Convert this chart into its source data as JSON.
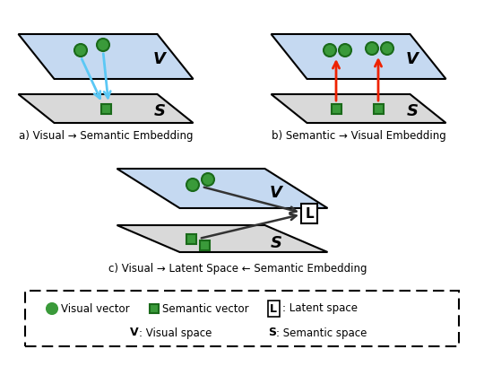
{
  "bg_color": "#ffffff",
  "parallelogram_blue_color": "#c5d9f1",
  "parallelogram_gray_color": "#d9d9d9",
  "parallelogram_edge_color": "#000000",
  "circle_color": "#3a9a3a",
  "circle_edge_color": "#3a9a3a",
  "square_color": "#3a9a3a",
  "square_edge_color": "#1a6a1a",
  "arrow_blue_color": "#5bc8f5",
  "arrow_red_color": "#ee2200",
  "arrow_dark_color": "#333333",
  "label_a": "a) Visual → Semantic Embedding",
  "label_b": "b) Semantic → Visual Embedding",
  "label_c": "c) Visual → Latent Space ← Semantic Embedding"
}
